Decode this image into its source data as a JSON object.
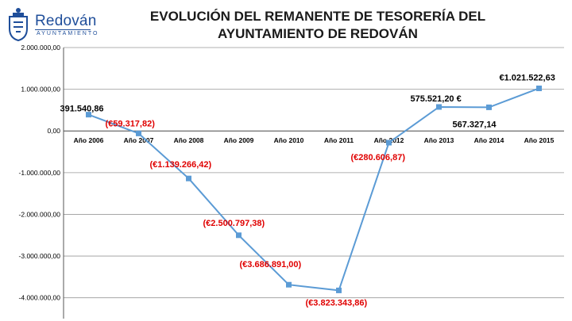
{
  "logo": {
    "name": "Redován",
    "subtitle": "AYUNTAMIENTO"
  },
  "chart_data": {
    "type": "line",
    "title_lines": [
      "EVOLUCIÓN DEL REMANENTE DE TESORERÍA DEL",
      "AYUNTAMIENTO DE REDOVÁN"
    ],
    "categories": [
      "Año 2006",
      "Año 2007",
      "Año 2008",
      "Año 2009",
      "Año 2010",
      "Año 2011",
      "Año 2012",
      "Año 2013",
      "Año 2014",
      "Año 2015"
    ],
    "values": [
      391540.86,
      -59317.82,
      -1139266.42,
      -2500797.38,
      -3686891.0,
      -3823343.86,
      -280606.87,
      575521.2,
      567327.14,
      1021522.63
    ],
    "data_labels": [
      "391.540,86",
      "(€59.317,82)",
      "(€1.139.266,42)",
      "(€2.500.797,38)",
      "(€3.686.891,00)",
      "(€3.823.343,86)",
      "(€280.606,87)",
      "575.521,20 €",
      "567.327,14",
      "€1.021.522,63"
    ],
    "negative_label_color": "#e00000",
    "positive_label_color": "#000000",
    "line_color": "#5b9bd5",
    "ylim": [
      -4500000,
      2000000
    ],
    "yticks": [
      2000000,
      1000000,
      0,
      -1000000,
      -2000000,
      -3000000,
      -4000000
    ],
    "ytick_labels": [
      "2.000.000,00",
      "1.000.000,00",
      "0,00",
      "-1.000.000,00",
      "-2.000.000,00",
      "-3.000.000,00",
      "-4.000.000,00"
    ],
    "grid": true,
    "legend": "none"
  }
}
